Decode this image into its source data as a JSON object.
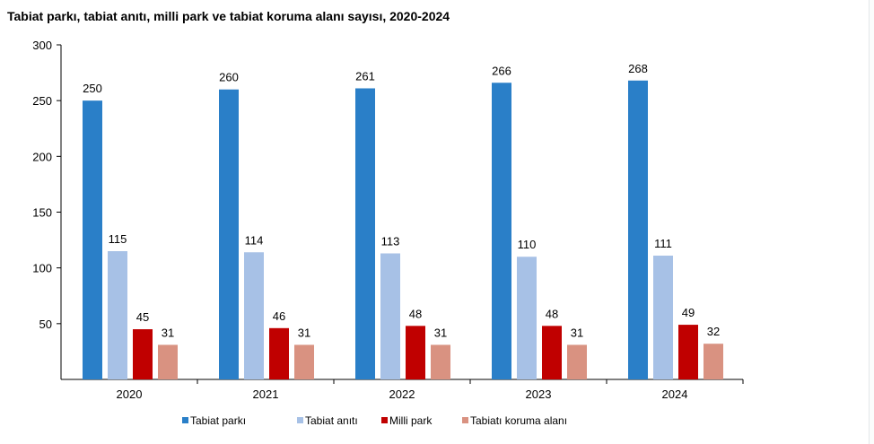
{
  "chart_data": {
    "type": "bar",
    "title": "Tabiat parkı, tabiat anıtı, milli park ve tabiat koruma alanı sayısı, 2020-2024",
    "categories": [
      "2020",
      "2021",
      "2022",
      "2023",
      "2024"
    ],
    "series": [
      {
        "name": "Tabiat parkı",
        "color": "#2a7fc8",
        "values": [
          250,
          260,
          261,
          266,
          268
        ]
      },
      {
        "name": "Tabiat anıtı",
        "color": "#a7c1e6",
        "values": [
          115,
          114,
          113,
          110,
          111
        ]
      },
      {
        "name": "Milli park",
        "color": "#c00000",
        "values": [
          45,
          46,
          48,
          48,
          49
        ]
      },
      {
        "name": "Tabiatı koruma alanı",
        "color": "#d99281",
        "values": [
          31,
          31,
          31,
          31,
          32
        ]
      }
    ],
    "ylim": [
      0,
      300
    ],
    "yticks": [
      50,
      100,
      150,
      200,
      250,
      300
    ],
    "xlabel": "",
    "ylabel": "",
    "grid": false,
    "data_labels": true,
    "legend": "bottom"
  }
}
